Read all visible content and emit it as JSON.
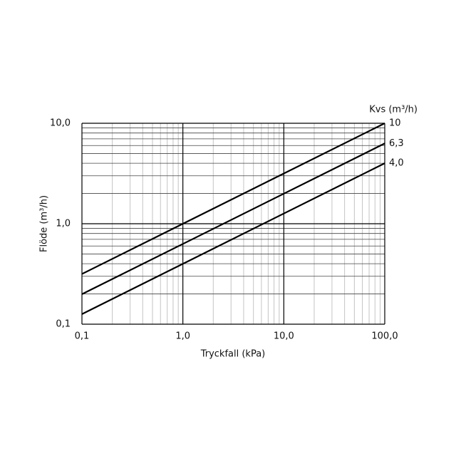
{
  "chart_data": {
    "type": "line",
    "x_label": "Tryckfall (kPa)",
    "y_label": "Flöde (m³/h)",
    "legend_title": "Kvs (m³/h)",
    "x": [
      0.1,
      100
    ],
    "series": [
      {
        "name": "10",
        "color": "#000000",
        "values": [
          0.316,
          10
        ]
      },
      {
        "name": "6,3",
        "color": "#000000",
        "values": [
          0.199,
          6.3
        ]
      },
      {
        "name": "4,0",
        "color": "#000000",
        "values": [
          0.126,
          4.0
        ]
      }
    ],
    "xlog": true,
    "ylog": true,
    "xlim": [
      0.1,
      100
    ],
    "ylim": [
      0.1,
      10
    ],
    "xticks": [
      {
        "value": 0.1,
        "label": "0,1"
      },
      {
        "value": 1,
        "label": "1,0"
      },
      {
        "value": 10,
        "label": "10,0"
      },
      {
        "value": 100,
        "label": "100,0"
      }
    ],
    "yticks": [
      {
        "value": 0.1,
        "label": "0,1"
      },
      {
        "value": 1,
        "label": "1,0"
      },
      {
        "value": 10,
        "label": "10,0"
      }
    ],
    "xminorticks": [
      0.2,
      0.3,
      0.4,
      0.5,
      0.6,
      0.7,
      0.8,
      0.9,
      2,
      3,
      4,
      5,
      6,
      7,
      8,
      9,
      20,
      30,
      40,
      50,
      60,
      70,
      80,
      90
    ],
    "yminorticks": [
      0.2,
      0.3,
      0.4,
      0.5,
      0.6,
      0.7,
      0.8,
      0.9,
      2,
      3,
      4,
      5,
      6,
      7,
      8,
      9
    ],
    "grid": true
  }
}
